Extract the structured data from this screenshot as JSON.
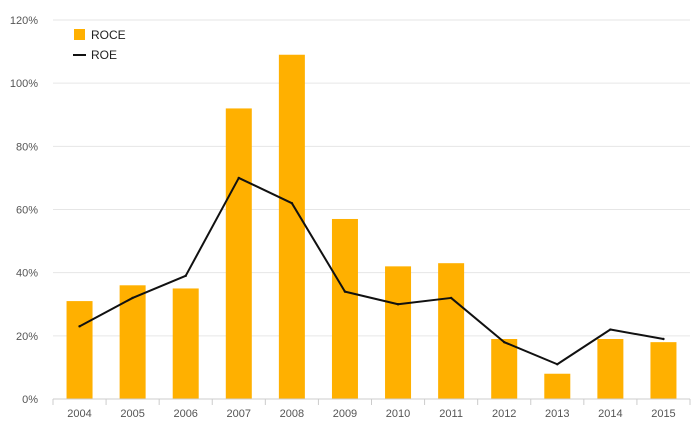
{
  "chart_data": {
    "type": "bar",
    "categories": [
      "2004",
      "2005",
      "2006",
      "2007",
      "2008",
      "2009",
      "2010",
      "2011",
      "2012",
      "2013",
      "2014",
      "2015"
    ],
    "series": [
      {
        "name": "ROCE",
        "type": "bar",
        "color": "#FFB000",
        "values": [
          31,
          36,
          35,
          92,
          109,
          57,
          42,
          43,
          19,
          8,
          19,
          18
        ]
      },
      {
        "name": "ROE",
        "type": "line",
        "color": "#111111",
        "values": [
          23,
          32,
          39,
          70,
          62,
          34,
          30,
          32,
          18,
          11,
          22,
          19
        ]
      }
    ],
    "y_unit": "%",
    "ylim": [
      0,
      120
    ],
    "yticks": [
      0,
      20,
      40,
      60,
      80,
      100,
      120
    ],
    "ytick_labels": [
      "0%",
      "20%",
      "40%",
      "60%",
      "80%",
      "100%",
      "120%"
    ],
    "grid": true,
    "legend_position": "top-left",
    "title": "",
    "xlabel": "",
    "ylabel": ""
  }
}
